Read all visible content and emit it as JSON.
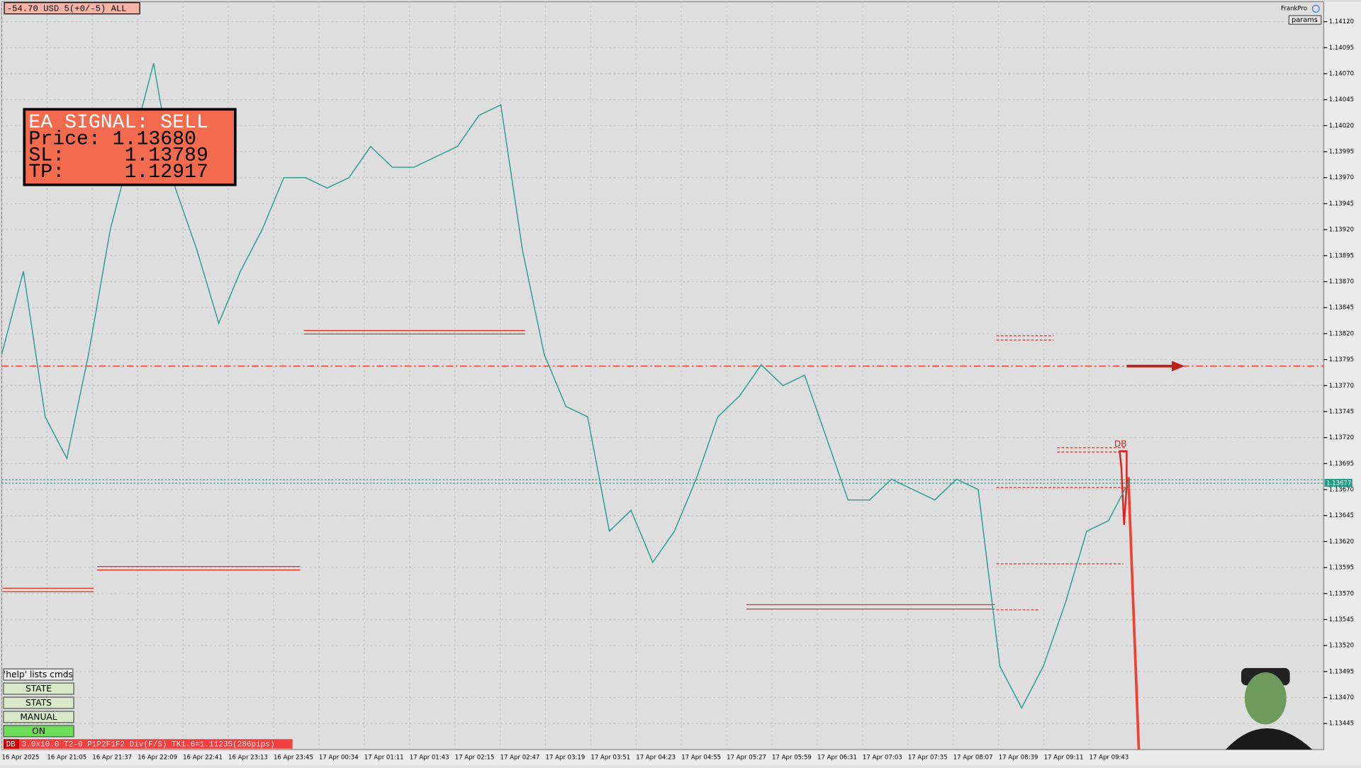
{
  "account_label": "-54.70 USD 5(+0/-5) ALL",
  "top_right": {
    "user": "FrankPro",
    "params_button": "params"
  },
  "signal_box": {
    "line1": "EA SIGNAL: SELL",
    "line2": "Price: 1.13680",
    "line3": "SL:     1.13789",
    "line4": "TP:     1.12917"
  },
  "chart_marker": "DB",
  "current_price_label": "1.13677",
  "price_axis": [
    "1.14120",
    "1.14095",
    "1.14070",
    "1.14045",
    "1.14020",
    "1.13995",
    "1.13970",
    "1.13945",
    "1.13920",
    "1.13895",
    "1.13870",
    "1.13845",
    "1.13820",
    "1.13795",
    "1.13770",
    "1.13745",
    "1.13720",
    "1.13695",
    "1.13670",
    "1.13645",
    "1.13620",
    "1.13595",
    "1.13570",
    "1.13545",
    "1.13520",
    "1.13495",
    "1.13470",
    "1.13445"
  ],
  "time_axis": [
    "16 Apr 2025",
    "16 Apr 21:05",
    "16 Apr 21:37",
    "16 Apr 22:09",
    "16 Apr 22:41",
    "16 Apr 23:13",
    "16 Apr 23:45",
    "17 Apr 00:34",
    "17 Apr 01:11",
    "17 Apr 01:43",
    "17 Apr 02:15",
    "17 Apr 02:47",
    "17 Apr 03:19",
    "17 Apr 03:51",
    "17 Apr 04:23",
    "17 Apr 04:55",
    "17 Apr 05:27",
    "17 Apr 05:59",
    "17 Apr 06:31",
    "17 Apr 07:03",
    "17 Apr 07:35",
    "17 Apr 08:07",
    "17 Apr 08:39",
    "17 Apr 09:11",
    "17 Apr 09:43"
  ],
  "price_series": [
    1.138,
    1.1388,
    1.1374,
    1.137,
    1.138,
    1.1392,
    1.14,
    1.1408,
    1.1396,
    1.139,
    1.1383,
    1.1388,
    1.1392,
    1.1397,
    1.1397,
    1.1396,
    1.1397,
    1.14,
    1.1398,
    1.1398,
    1.1399,
    1.14,
    1.1403,
    1.1404,
    1.139,
    1.138,
    1.1375,
    1.1374,
    1.1363,
    1.1365,
    1.136,
    1.1363,
    1.1368,
    1.1374,
    1.1376,
    1.1379,
    1.1377,
    1.1378,
    1.1372,
    1.1366,
    1.1366,
    1.1368,
    1.1367,
    1.1366,
    1.1368,
    1.1367,
    1.135,
    1.1346,
    1.135,
    1.1356,
    1.1363,
    1.1364,
    1.1368
  ],
  "buttons": [
    "'help' lists cmds",
    "STATE",
    "STATS",
    "MANUAL",
    "ON"
  ],
  "status_bar": {
    "tag": "DB",
    "text": "3.0x10.0 T2-0 P1P2F1F2 Div(F/S) TK1.6=1.11235(286pips)"
  }
}
